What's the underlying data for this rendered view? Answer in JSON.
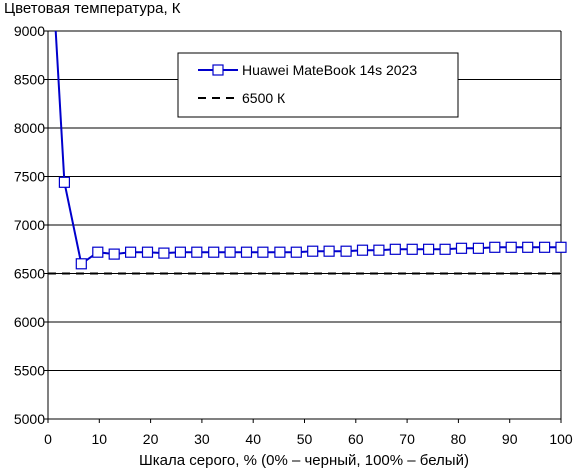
{
  "chart_data": {
    "type": "line",
    "title": "",
    "ylabel": "Цветовая температура, К",
    "xlabel": "Шкала серого, % (0% – черный, 100% – белый)",
    "xlim": [
      0,
      100
    ],
    "ylim": [
      5000,
      9000
    ],
    "x_ticks": [
      "0",
      "10",
      "20",
      "30",
      "40",
      "50",
      "60",
      "70",
      "80",
      "90",
      "100"
    ],
    "y_ticks": [
      "5000",
      "5500",
      "6000",
      "6500",
      "7000",
      "7500",
      "8000",
      "8500",
      "9000"
    ],
    "grid": "horizontal",
    "legend_position": "top-right",
    "series": [
      {
        "name": "Huawei MateBook 14s 2023",
        "color": "#0000cc",
        "marker": "square",
        "line_style": "solid",
        "x": [
          3.2,
          6.5,
          9.7,
          12.9,
          16.1,
          19.4,
          22.6,
          25.8,
          29.0,
          32.3,
          35.5,
          38.7,
          41.9,
          45.2,
          48.4,
          51.6,
          54.8,
          58.1,
          61.3,
          64.5,
          67.7,
          71.0,
          74.2,
          77.4,
          80.6,
          83.9,
          87.1,
          90.3,
          93.5,
          96.8,
          100
        ],
        "y": [
          7440,
          6600,
          6720,
          6700,
          6720,
          6720,
          6710,
          6720,
          6720,
          6720,
          6720,
          6720,
          6720,
          6720,
          6720,
          6730,
          6730,
          6730,
          6740,
          6740,
          6750,
          6750,
          6750,
          6750,
          6760,
          6760,
          6770,
          6770,
          6770,
          6770,
          6770
        ],
        "offscale_start": {
          "x": 1.5,
          "y": 9000
        }
      },
      {
        "name": "6500 К",
        "color": "#000000",
        "line_style": "dashed",
        "x": [
          0,
          100
        ],
        "y": [
          6500,
          6500
        ]
      }
    ]
  }
}
